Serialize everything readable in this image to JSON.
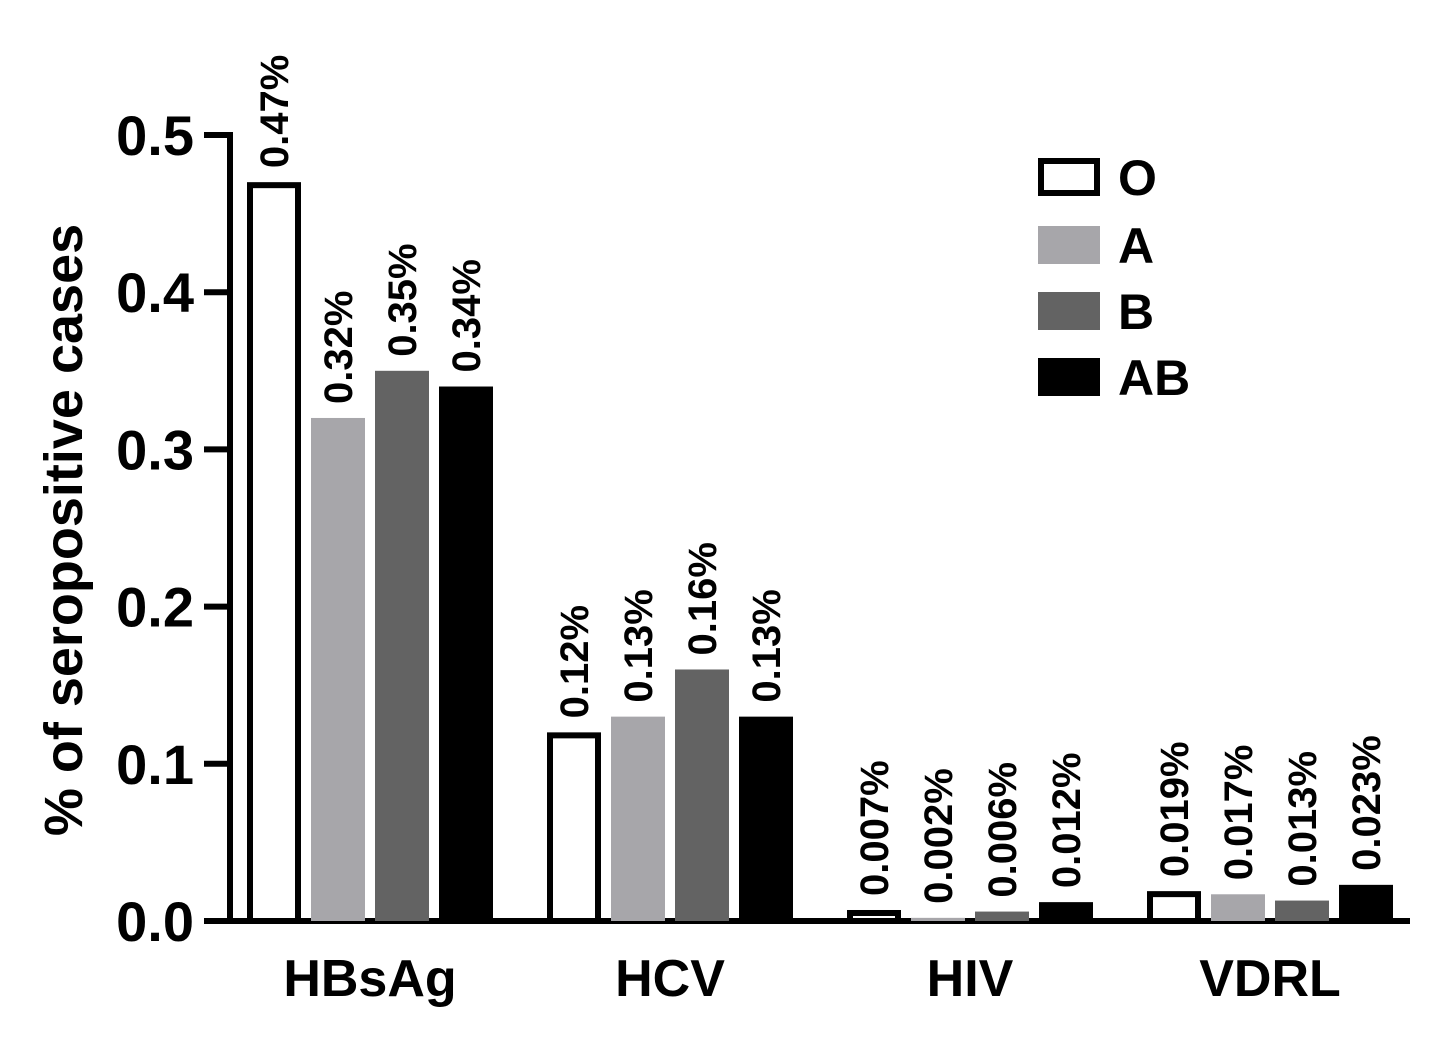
{
  "chart_data": {
    "type": "bar",
    "title": "",
    "xlabel": "",
    "ylabel": "% of seropositive cases",
    "ylim": [
      0,
      0.5
    ],
    "yticks": [
      "0.0",
      "0.1",
      "0.2",
      "0.3",
      "0.4",
      "0.5"
    ],
    "categories": [
      "HBsAg",
      "HCV",
      "HIV",
      "VDRL"
    ],
    "legend_position": "top-right",
    "series": [
      {
        "name": "O",
        "color": "#ffffff",
        "outline": true,
        "values": [
          0.47,
          0.12,
          0.007,
          0.019
        ],
        "labels": [
          "0.47%",
          "0.12%",
          "0.007%",
          "0.019%"
        ]
      },
      {
        "name": "A",
        "color": "#a7a6aa",
        "outline": false,
        "values": [
          0.32,
          0.13,
          0.002,
          0.017
        ],
        "labels": [
          "0.32%",
          "0.13%",
          "0.002%",
          "0.017%"
        ]
      },
      {
        "name": "B",
        "color": "#636363",
        "outline": false,
        "values": [
          0.35,
          0.16,
          0.006,
          0.013
        ],
        "labels": [
          "0.35%",
          "0.16%",
          "0.006%",
          "0.013%"
        ]
      },
      {
        "name": "AB",
        "color": "#000000",
        "outline": false,
        "values": [
          0.34,
          0.13,
          0.012,
          0.023
        ],
        "labels": [
          "0.34%",
          "0.13%",
          "0.012%",
          "0.023%"
        ]
      }
    ]
  }
}
